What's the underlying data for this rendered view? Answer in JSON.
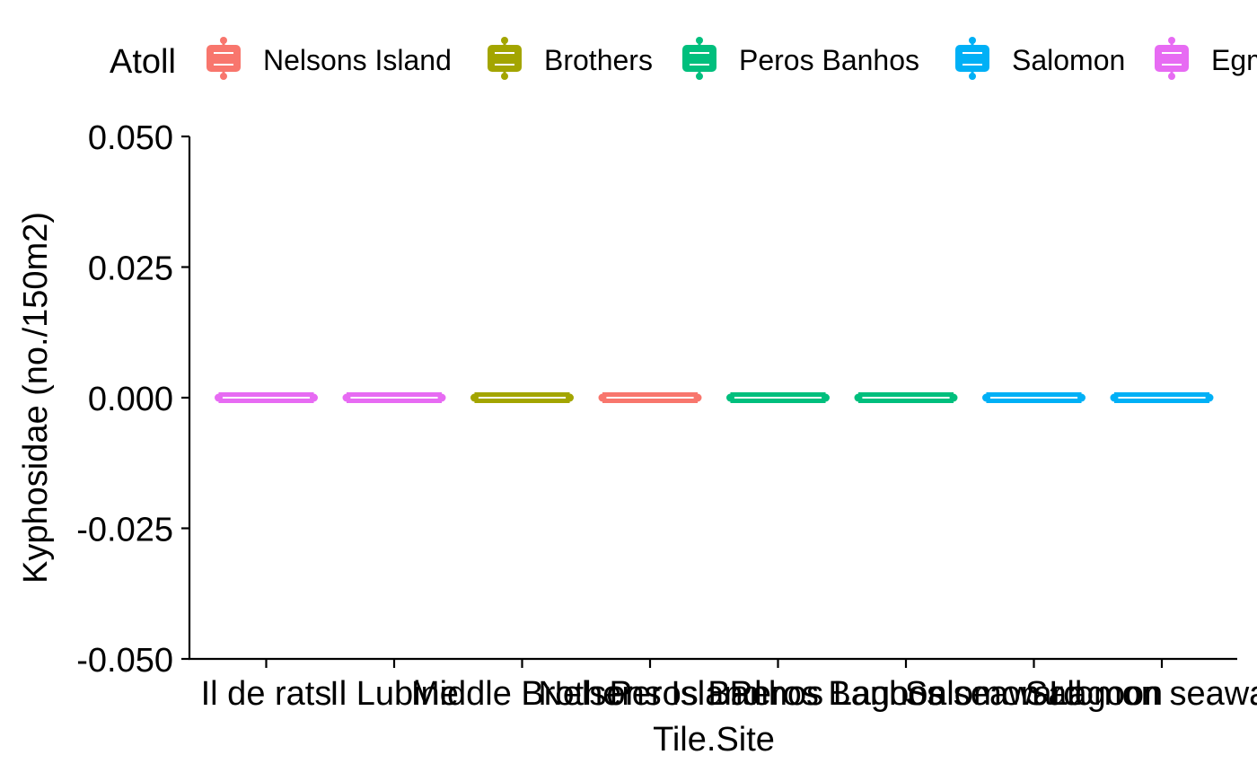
{
  "chart_data": {
    "type": "box",
    "xlabel": "Tile.Site",
    "ylabel": "Kyphosidae (no./150m2)",
    "ylim": [
      -0.05,
      0.05
    ],
    "yticks": [
      "-0.050",
      "-0.025",
      "0.000",
      "0.025",
      "0.050"
    ],
    "ytick_values": [
      -0.05,
      -0.025,
      0,
      0.025,
      0.05
    ],
    "grid": false,
    "legend": {
      "title": "Atoll",
      "position": "top",
      "entries": [
        {
          "name": "Nelsons Island",
          "color": "#F8766D"
        },
        {
          "name": "Brothers",
          "color": "#A3A500"
        },
        {
          "name": "Peros Banhos",
          "color": "#00BF7D"
        },
        {
          "name": "Salomon",
          "color": "#00B0F6"
        },
        {
          "name": "Egm",
          "color": "#E76BF3"
        }
      ]
    },
    "categories": [
      "Il de rats",
      "Il Lubine",
      "Middle Brother",
      "Nelsons Island",
      "Peros Banhos Lagoon",
      "Peros Banhos seaward",
      "Salomon Lagoon",
      "Salomon seaward"
    ],
    "series_atoll": [
      "Egm",
      "Egm",
      "Brothers",
      "Nelsons Island",
      "Peros Banhos",
      "Peros Banhos",
      "Salomon",
      "Salomon"
    ],
    "values": [
      0,
      0,
      0,
      0,
      0,
      0,
      0,
      0
    ]
  }
}
